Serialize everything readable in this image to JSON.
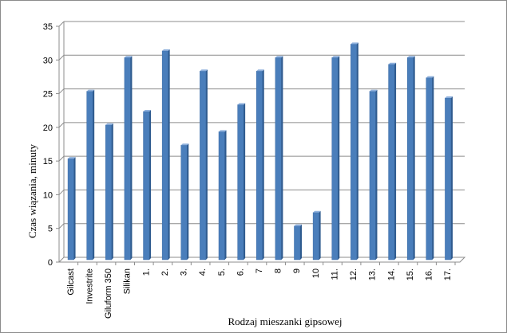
{
  "chart_data": {
    "type": "bar",
    "title": "",
    "xlabel": "Rodzaj mieszanki gipsowej",
    "ylabel": "Czas wiązania, minuty",
    "ylim": [
      0,
      35
    ],
    "yticks": [
      0,
      5,
      10,
      15,
      20,
      25,
      30,
      35
    ],
    "grid": true,
    "legend": "none",
    "categories": [
      "Gilcast",
      "Investrite",
      "Giluform 350",
      "Silikan",
      "1.",
      "2.",
      "3.",
      "4.",
      "5.",
      "6.",
      "7",
      "8",
      "9",
      "10",
      "11.",
      "12.",
      "13.",
      "14.",
      "15.",
      "16.",
      "17."
    ],
    "series": [
      {
        "values": [
          15,
          25,
          20,
          30,
          22,
          31,
          17,
          28,
          19,
          23,
          28,
          30,
          5,
          7,
          30,
          32,
          25,
          29,
          30,
          27,
          24
        ],
        "color": "#4a7ebb"
      }
    ]
  }
}
